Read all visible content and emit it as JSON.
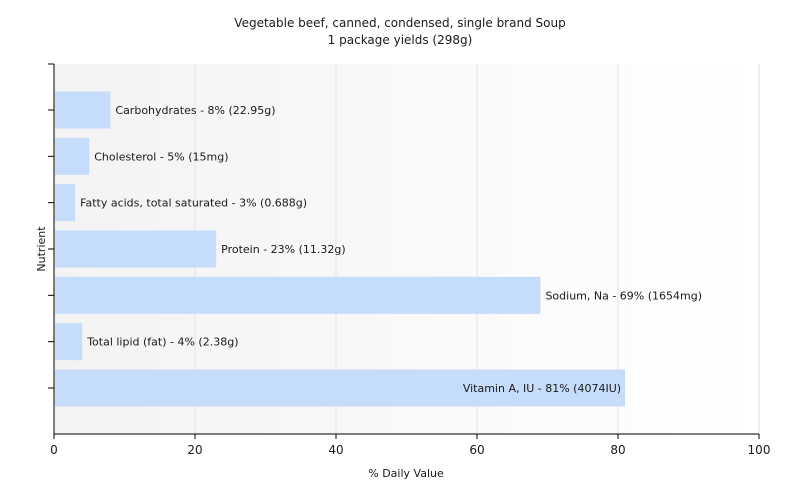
{
  "chart_data": {
    "type": "bar",
    "orientation": "horizontal",
    "title": "Vegetable beef, canned, condensed, single brand Soup",
    "subtitle": "1 package yields (298g)",
    "xlabel": "% Daily Value",
    "ylabel": "Nutrient",
    "xlim": [
      0,
      100
    ],
    "x_ticks": [
      0,
      20,
      40,
      60,
      80,
      100
    ],
    "grid": true,
    "bar_color": "#c6dcfb",
    "categories": [
      "Carbohydrates",
      "Cholesterol",
      "Fatty acids, total saturated",
      "Protein",
      "Sodium, Na",
      "Total lipid (fat)",
      "Vitamin A, IU"
    ],
    "values": [
      8,
      5,
      3,
      23,
      69,
      4,
      81
    ],
    "labels": [
      "Carbohydrates - 8% (22.95g)",
      "Cholesterol - 5% (15mg)",
      "Fatty acids, total saturated - 3% (0.688g)",
      "Protein - 23% (11.32g)",
      "Sodium, Na - 69% (1654mg)",
      "Total lipid (fat) - 4% (2.38g)",
      "Vitamin A, IU - 81% (4074IU)"
    ]
  }
}
